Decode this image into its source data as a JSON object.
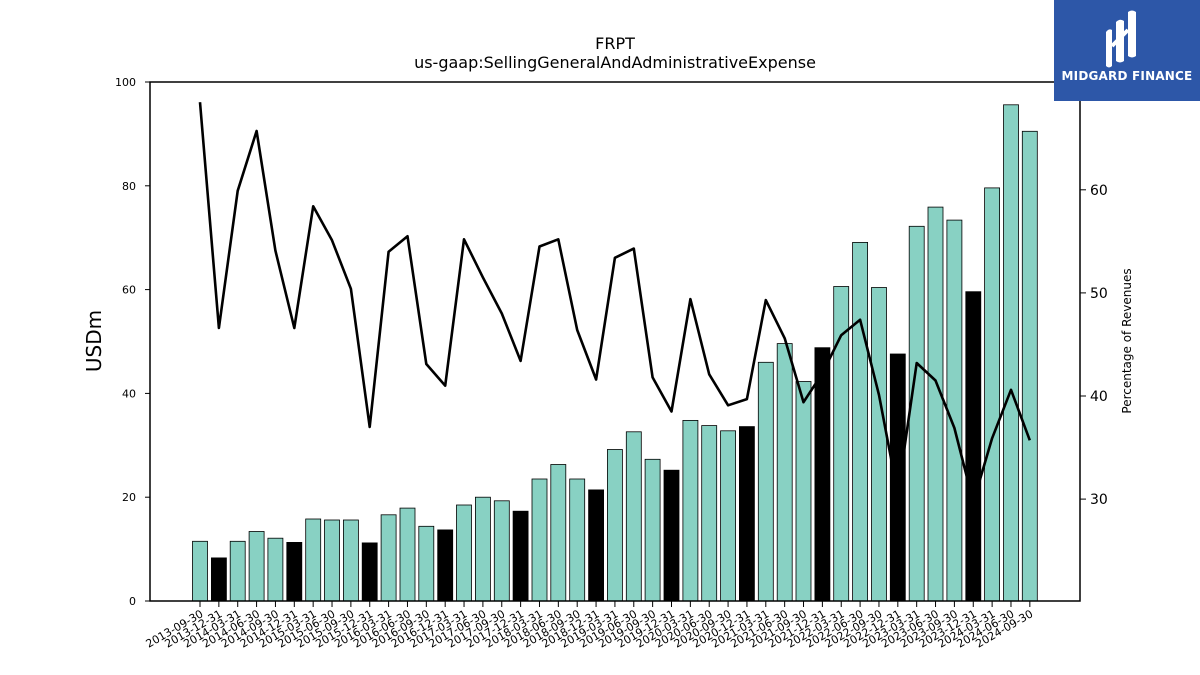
{
  "brand": {
    "name": "MIDGARD FINANCE",
    "bg": "#2d57a8"
  },
  "chart_data": {
    "type": "bar",
    "title": "FRPT",
    "subtitle": "us-gaap:SellingGeneralAndAdministrativeExpense",
    "ylabel": "USDm",
    "y2label": "Percentage of Revenues",
    "ylim": [
      0,
      100
    ],
    "y2lim": [
      20,
      70
    ],
    "yticks": [
      0,
      20,
      40,
      60,
      80,
      100
    ],
    "y2ticks": [
      30,
      40,
      50,
      60
    ],
    "colors": {
      "bar": "#88d1c3",
      "bar_q4": "#000000",
      "line": "#000000"
    },
    "categories": [
      "2013-09-30",
      "2013-12-31",
      "2014-03-31",
      "2014-06-30",
      "2014-09-30",
      "2014-12-31",
      "2015-03-31",
      "2015-06-30",
      "2015-09-30",
      "2015-12-31",
      "2016-03-31",
      "2016-06-30",
      "2016-09-30",
      "2016-12-31",
      "2017-03-31",
      "2017-06-30",
      "2017-09-30",
      "2017-12-31",
      "2018-03-31",
      "2018-06-30",
      "2018-09-30",
      "2018-12-31",
      "2019-03-31",
      "2019-06-30",
      "2019-09-30",
      "2019-12-31",
      "2020-03-31",
      "2020-06-30",
      "2020-09-30",
      "2020-12-31",
      "2021-03-31",
      "2021-06-30",
      "2021-09-30",
      "2021-12-31",
      "2022-03-31",
      "2022-06-30",
      "2022-09-30",
      "2022-12-31",
      "2023-03-31",
      "2023-06-30",
      "2023-09-30",
      "2023-12-31",
      "2024-03-31",
      "2024-06-30",
      "2024-09-30"
    ],
    "series": [
      {
        "type": "bar",
        "values": [
          11.5,
          8.3,
          11.5,
          13.4,
          12.1,
          11.3,
          15.8,
          15.6,
          15.6,
          11.2,
          16.6,
          17.9,
          14.4,
          13.7,
          18.5,
          20.0,
          19.3,
          17.3,
          23.5,
          26.3,
          23.5,
          21.4,
          29.2,
          32.6,
          27.3,
          25.2,
          34.8,
          33.8,
          32.8,
          33.6,
          46.0,
          49.6,
          42.3,
          48.8,
          60.6,
          69.1,
          60.4,
          47.6,
          72.2,
          75.9,
          73.4,
          59.6,
          79.6,
          95.6,
          90.5
        ]
      },
      {
        "type": "line",
        "axis": "right",
        "values": [
          68.5,
          46.6,
          59.9,
          65.7,
          54.1,
          46.6,
          58.4,
          55.1,
          50.4,
          37.0,
          54.0,
          55.5,
          43.1,
          41.0,
          55.2,
          51.5,
          48.0,
          43.4,
          54.5,
          55.2,
          46.4,
          41.6,
          53.4,
          54.3,
          41.8,
          38.5,
          49.4,
          42.1,
          39.1,
          39.7,
          49.3,
          45.6,
          39.4,
          42.2,
          45.9,
          47.4,
          40.1,
          30.5,
          43.2,
          41.5,
          36.9,
          29.7,
          35.9,
          40.6,
          35.7
        ]
      }
    ]
  }
}
